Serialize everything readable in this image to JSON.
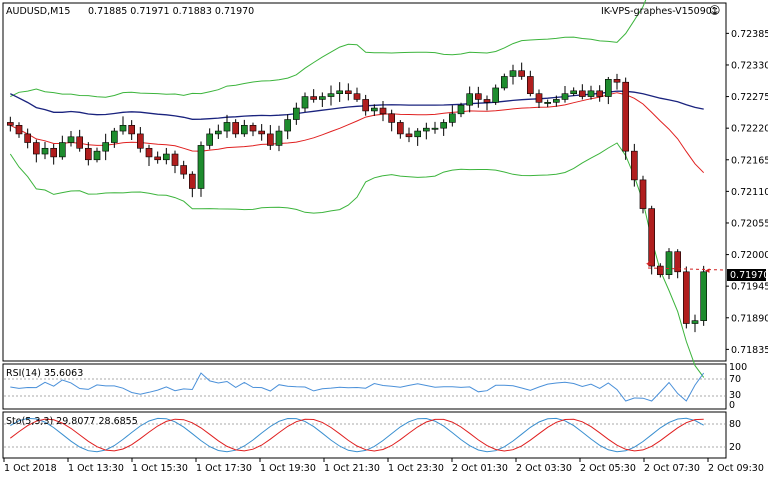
{
  "header": {
    "symbol": "AUDUSD,M15",
    "ohlc": "0.71885 0.71971 0.71883 0.71970",
    "broker": "IK-VPS-graphes-V150901"
  },
  "price_axis": {
    "ticks": [
      "0.72385",
      "0.72330",
      "0.72275",
      "0.72220",
      "0.72165",
      "0.72110",
      "0.72055",
      "0.72000",
      "0.71945",
      "0.71890",
      "0.71835"
    ],
    "current_price": "0.71970"
  },
  "time_axis": {
    "ticks": [
      "1 Oct 2018",
      "1 Oct 13:30",
      "1 Oct 15:30",
      "1 Oct 17:30",
      "1 Oct 19:30",
      "1 Oct 21:30",
      "1 Oct 23:30",
      "2 Oct 01:30",
      "2 Oct 03:30",
      "2 Oct 05:30",
      "2 Oct 07:30",
      "2 Oct 09:30"
    ]
  },
  "rsi_panel": {
    "label": "RSI(14) 35.6063",
    "levels": [
      "100",
      "70",
      "30",
      "0"
    ]
  },
  "sto_panel": {
    "label": "Sto(5,3,3) 29.8077 28.6855",
    "levels": [
      "80",
      "20"
    ]
  },
  "colors": {
    "bull": "#1e8c2e",
    "bear": "#b01e1e",
    "band": "#3cb43c",
    "ma_slow": "#1a237e",
    "ma_fast": "#e02020",
    "rsi": "#4a90d9",
    "sto_main": "#3a8fd0",
    "sto_signal": "#e02020"
  },
  "chart_data": {
    "type": "candlestick",
    "title": "AUDUSD,M15",
    "ylim": [
      0.7182,
      0.7241
    ],
    "x": [
      "1 Oct 2018",
      "1 Oct 13:30",
      "1 Oct 15:30",
      "1 Oct 17:30",
      "1 Oct 19:30",
      "1 Oct 21:30",
      "1 Oct 23:30",
      "2 Oct 01:30",
      "2 Oct 03:30",
      "2 Oct 05:30",
      "2 Oct 07:30",
      "2 Oct 09:30"
    ],
    "last_close": 0.7197,
    "close_series": [
      0.72225,
      0.7221,
      0.72195,
      0.72175,
      0.72185,
      0.7217,
      0.72195,
      0.72205,
      0.72185,
      0.72165,
      0.7218,
      0.72195,
      0.72215,
      0.72225,
      0.7221,
      0.72185,
      0.7217,
      0.72165,
      0.72175,
      0.72155,
      0.7214,
      0.72115,
      0.7219,
      0.7221,
      0.72215,
      0.7223,
      0.7221,
      0.72225,
      0.72215,
      0.7221,
      0.7219,
      0.72215,
      0.72235,
      0.72255,
      0.72275,
      0.7227,
      0.72275,
      0.7228,
      0.72285,
      0.7228,
      0.7227,
      0.7225,
      0.72255,
      0.72245,
      0.7223,
      0.7221,
      0.72205,
      0.72215,
      0.7222,
      0.7222,
      0.7223,
      0.72245,
      0.7226,
      0.7228,
      0.7227,
      0.72265,
      0.7229,
      0.7231,
      0.7232,
      0.7231,
      0.7228,
      0.72265,
      0.72265,
      0.7227,
      0.7228,
      0.72285,
      0.72275,
      0.72285,
      0.72275,
      0.72305,
      0.723,
      0.7218,
      0.7213,
      0.7208,
      0.7198,
      0.71965,
      0.72005,
      0.7197,
      0.7188,
      0.71885,
      0.7197
    ]
  }
}
